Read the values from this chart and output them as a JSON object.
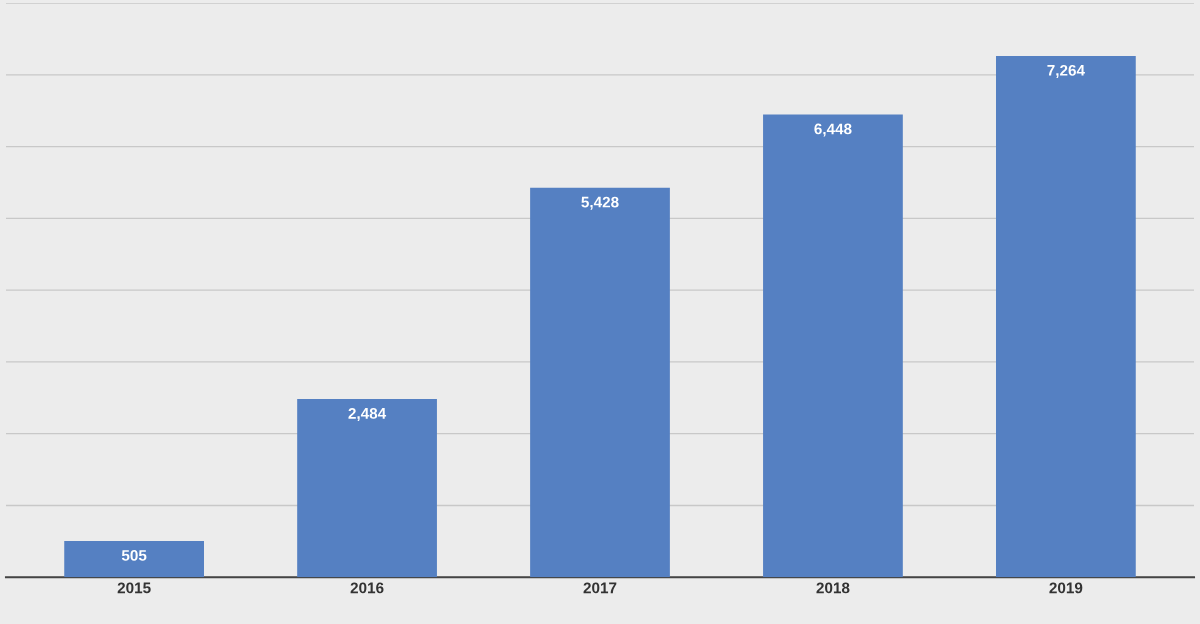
{
  "chart_data": {
    "type": "bar",
    "categories": [
      "2015",
      "2016",
      "2017",
      "2018",
      "2019"
    ],
    "values": [
      505,
      2484,
      5428,
      6448,
      7264
    ],
    "color": "#5580c2",
    "value_labels": [
      "505",
      "2,484",
      "5,428",
      "6,448",
      "7,264"
    ],
    "ylim": [
      0,
      8000
    ],
    "yticks": [
      {
        "value": 0,
        "label": null
      },
      {
        "value": 1000,
        "label": null
      },
      {
        "value": 2000,
        "label": null
      },
      {
        "value": 3000,
        "label": null
      },
      {
        "value": 4000,
        "label": null
      },
      {
        "value": 5000,
        "label": null
      },
      {
        "value": 6000,
        "label": null
      },
      {
        "value": 7000,
        "label": null
      },
      {
        "value": 8000,
        "label": null
      }
    ],
    "grid": "y",
    "tick_labels": "x",
    "legend": false
  }
}
